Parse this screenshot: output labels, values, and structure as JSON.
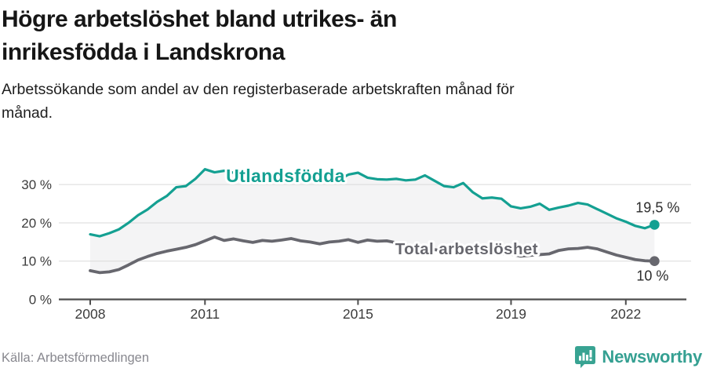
{
  "header": {
    "title_line1": "Högre arbetslöshet bland utrikes- än",
    "title_line2": "inrikesfödda i Landskrona",
    "subtitle_line1": "Arbetssökande som andel av den registerbaserade arbetskraften månad för",
    "subtitle_line2": "månad."
  },
  "chart_data": {
    "type": "line",
    "title": "Högre arbetslöshet bland utrikes- än inrikesfödda i Landskrona",
    "subtitle": "Arbetssökande som andel av den registerbaserade arbetskraften månad för månad.",
    "x_unit": "decimal_year",
    "xlim": [
      2008,
      2023.1
    ],
    "ylim": [
      0,
      35
    ],
    "grid": "horizontal",
    "legend": "inline-labels",
    "band_fill": "#f4f4f5",
    "gridline_color": "#dadada",
    "axis_color": "#4d4d4d",
    "tick_text_color": "#3c3c3c",
    "annotation_color": "#2b2b2b",
    "y_ticks": [
      {
        "value": 0,
        "label": "0 %"
      },
      {
        "value": 10,
        "label": "10 %"
      },
      {
        "value": 20,
        "label": "20 %"
      },
      {
        "value": 30,
        "label": "30 %"
      }
    ],
    "x_ticks": [
      {
        "value": 2008,
        "label": "2008"
      },
      {
        "value": 2011,
        "label": "2011"
      },
      {
        "value": 2015,
        "label": "2015"
      },
      {
        "value": 2019,
        "label": "2019"
      },
      {
        "value": 2022,
        "label": "2022"
      }
    ],
    "x": [
      2008,
      2008.25,
      2008.5,
      2008.75,
      2009,
      2009.25,
      2009.5,
      2009.75,
      2010,
      2010.25,
      2010.5,
      2010.75,
      2011,
      2011.25,
      2011.5,
      2011.75,
      2012,
      2012.25,
      2012.5,
      2012.75,
      2013,
      2013.25,
      2013.5,
      2013.75,
      2014,
      2014.25,
      2014.5,
      2014.75,
      2015,
      2015.25,
      2015.5,
      2015.75,
      2016,
      2016.25,
      2016.5,
      2016.75,
      2017,
      2017.25,
      2017.5,
      2017.75,
      2018,
      2018.25,
      2018.5,
      2018.75,
      2019,
      2019.25,
      2019.5,
      2019.75,
      2020,
      2020.25,
      2020.5,
      2020.75,
      2021,
      2021.25,
      2021.5,
      2021.75,
      2022,
      2022.25,
      2022.5,
      2022.75
    ],
    "series": [
      {
        "name": "Utlandsfödda",
        "slug": "utlandsfodda",
        "color": "#14a092",
        "line_width": 3.2,
        "values": [
          17.0,
          16.5,
          17.3,
          18.3,
          20.0,
          22.0,
          23.5,
          25.5,
          27.0,
          29.3,
          29.6,
          31.5,
          34.0,
          33.2,
          33.6,
          33.1,
          32.7,
          32.9,
          32.4,
          32.6,
          32.1,
          32.3,
          31.9,
          32.1,
          31.7,
          31.9,
          31.3,
          32.6,
          33.1,
          31.8,
          31.4,
          31.3,
          31.5,
          31.1,
          31.3,
          32.4,
          31.0,
          29.6,
          29.3,
          30.4,
          28.0,
          26.4,
          26.6,
          26.3,
          24.3,
          23.8,
          24.2,
          25.0,
          23.4,
          24.0,
          24.5,
          25.2,
          24.8,
          23.6,
          22.4,
          21.2,
          20.3,
          19.2,
          18.6,
          19.5
        ],
        "label": {
          "text": "Utlandsfödda",
          "year": 2011.55,
          "pct": 30.6,
          "font_size": 23
        },
        "end_value": 19.5,
        "end_label": {
          "text": "19,5 %",
          "dx": 32,
          "dy": -16
        }
      },
      {
        "name": "Total arbetslöshet",
        "slug": "total-arbetsloshet",
        "color": "#67676e",
        "line_width": 3.8,
        "values": [
          7.5,
          7.0,
          7.2,
          7.8,
          9.0,
          10.3,
          11.2,
          12.0,
          12.6,
          13.1,
          13.6,
          14.3,
          15.3,
          16.3,
          15.4,
          15.8,
          15.3,
          14.9,
          15.4,
          15.2,
          15.5,
          15.9,
          15.3,
          15.0,
          14.5,
          15.0,
          15.2,
          15.6,
          14.9,
          15.5,
          15.2,
          15.3,
          14.8,
          14.3,
          13.8,
          13.4,
          13.0,
          12.7,
          12.4,
          12.2,
          12.0,
          11.7,
          11.9,
          12.0,
          11.8,
          11.3,
          11.5,
          11.7,
          11.9,
          12.8,
          13.2,
          13.3,
          13.6,
          13.2,
          12.4,
          11.6,
          11.0,
          10.4,
          10.1,
          10.0
        ],
        "label": {
          "text": "Total arbetslöshet",
          "year": 2015.97,
          "pct": 11.8,
          "font_size": 20.5
        },
        "end_value": 10,
        "end_label": {
          "text": "10 %",
          "dx": 18,
          "dy": 25
        }
      }
    ]
  },
  "footer": {
    "source": "Källa: Arbetsförmedlingen",
    "brand": "Newsworthy",
    "brand_color": "#35a092"
  }
}
